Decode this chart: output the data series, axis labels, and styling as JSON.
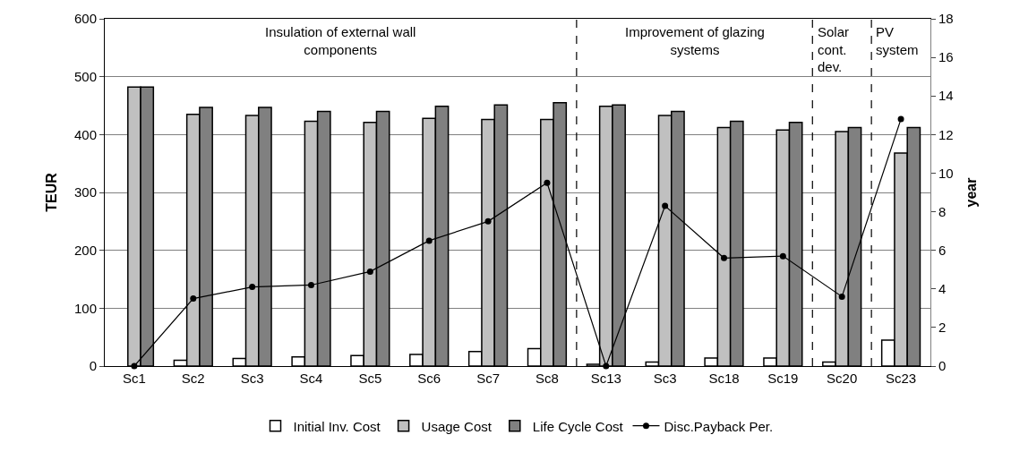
{
  "chart_data": {
    "type": "bar",
    "ylabel": "TEUR",
    "y2label": "year",
    "categories": [
      "Sc1",
      "Sc2",
      "Sc3",
      "Sc4",
      "Sc5",
      "Sc6",
      "Sc7",
      "Sc8",
      "Sc13",
      "Sc3",
      "Sc18",
      "Sc19",
      "Sc20",
      "Sc23"
    ],
    "series": [
      {
        "name": "Initial Inv. Cost",
        "color": "#ffffff",
        "values": [
          null,
          10,
          13,
          16,
          18,
          20,
          25,
          30,
          3,
          7,
          14,
          14,
          7,
          45
        ]
      },
      {
        "name": "Usage Cost",
        "color": "#c0c0c0",
        "values": [
          482,
          435,
          433,
          423,
          421,
          428,
          426,
          426,
          449,
          433,
          412,
          408,
          405,
          368
        ]
      },
      {
        "name": "Life Cycle Cost",
        "color": "#808080",
        "values": [
          482,
          447,
          447,
          440,
          440,
          449,
          451,
          455,
          451,
          440,
          423,
          421,
          412,
          412
        ]
      },
      {
        "name": "Disc.Payback Per.",
        "type": "line",
        "axis": "y2",
        "color": "#000000",
        "marker": "circle",
        "values": [
          0,
          3.5,
          4.1,
          4.2,
          4.9,
          6.5,
          7.5,
          9.5,
          0,
          8.3,
          5.6,
          5.7,
          3.6,
          12.8
        ]
      }
    ],
    "ylim": [
      0,
      600
    ],
    "yticks": [
      0,
      100,
      200,
      300,
      400,
      500,
      600
    ],
    "y2lim": [
      0,
      18
    ],
    "y2ticks": [
      0,
      2,
      4,
      6,
      8,
      10,
      12,
      14,
      16,
      18
    ],
    "annotations": [
      "Insulation of external wall\ncomponents",
      "Improvement of glazing\nsystems",
      "Solar\ncont.\ndev.",
      "PV\nsystem"
    ],
    "grid": "y",
    "legend": "bottom"
  }
}
